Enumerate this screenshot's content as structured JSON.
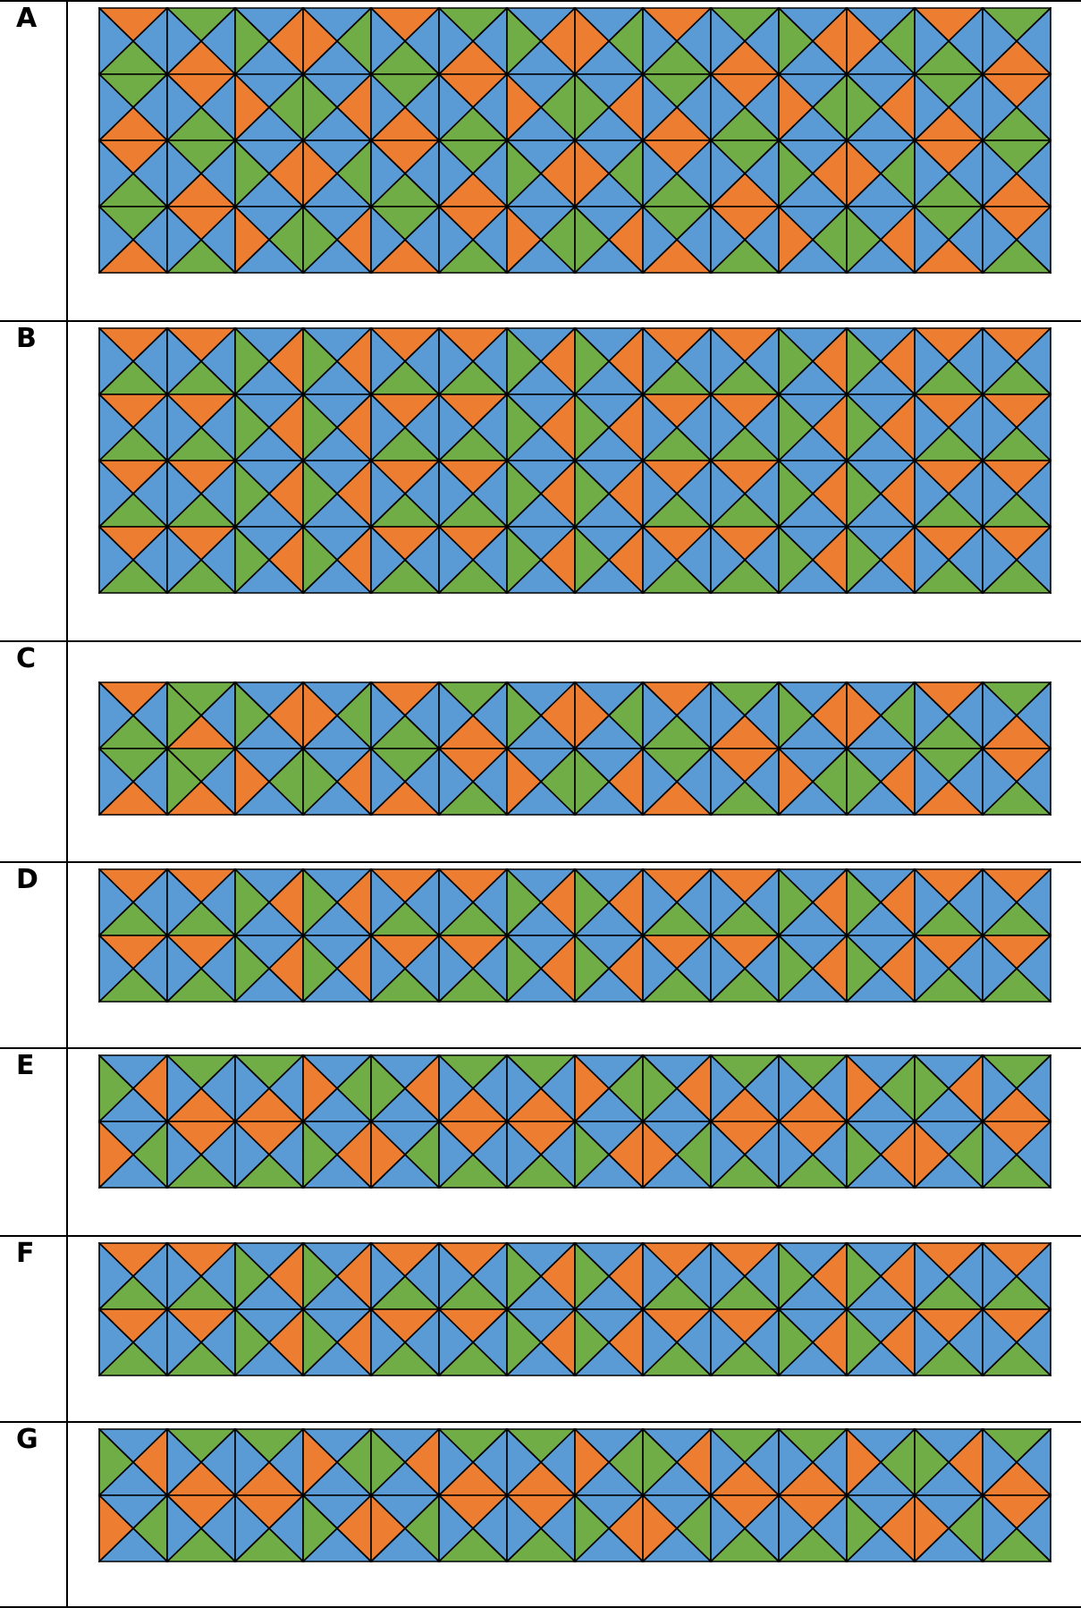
{
  "colors": {
    "orange": "#ED7D31",
    "green": "#70AD47",
    "blue": "#5B9BD5",
    "outline": "#000000"
  },
  "rows": [
    {
      "label": "A",
      "units_tall": 4,
      "variant": "A"
    },
    {
      "label": "B",
      "units_tall": 4,
      "variant": "B"
    },
    {
      "label": "C",
      "units_tall": 2,
      "variant": "C"
    },
    {
      "label": "D",
      "units_tall": 2,
      "variant": "D"
    },
    {
      "label": "E",
      "units_tall": 2,
      "variant": "E"
    },
    {
      "label": "F",
      "units_tall": 2,
      "variant": "F"
    },
    {
      "label": "G",
      "units_tall": 2,
      "variant": "G"
    }
  ]
}
